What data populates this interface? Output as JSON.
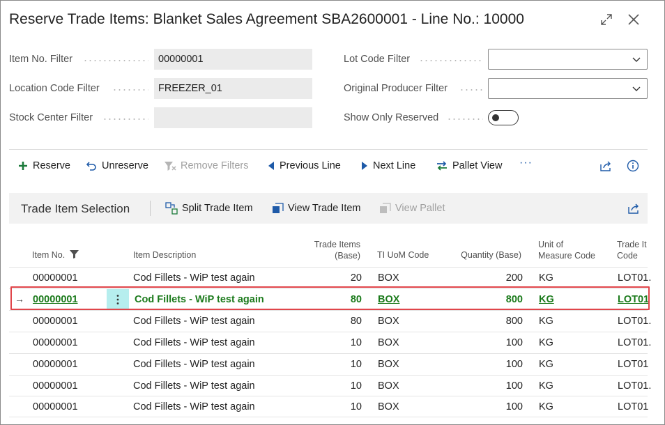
{
  "window": {
    "title": "Reserve Trade Items: Blanket Sales Agreement SBA2600001 - Line No.: 10000"
  },
  "filters": {
    "item_no": {
      "label": "Item No. Filter",
      "value": "00000001"
    },
    "location_code": {
      "label": "Location Code Filter",
      "value": "FREEZER_01"
    },
    "stock_center": {
      "label": "Stock Center Filter",
      "value": ""
    },
    "lot_code": {
      "label": "Lot Code Filter",
      "value": ""
    },
    "original_producer": {
      "label": "Original Producer Filter",
      "value": ""
    },
    "show_only_reserved": {
      "label": "Show Only Reserved",
      "on": false
    }
  },
  "actions": {
    "reserve": "Reserve",
    "unreserve": "Unreserve",
    "remove_filters": "Remove Filters",
    "previous_line": "Previous Line",
    "next_line": "Next Line",
    "pallet_view": "Pallet View",
    "more": "···"
  },
  "subpage": {
    "title": "Trade Item Selection",
    "actions": {
      "split": "Split Trade Item",
      "view": "View Trade Item",
      "view_pallet": "View Pallet"
    },
    "columns": {
      "item_no": "Item No.",
      "item_description": "Item Description",
      "trade_items_base_1": "Trade Items",
      "trade_items_base_2": "(Base)",
      "ti_uom_code": "TI UoM Code",
      "quantity_base": "Quantity (Base)",
      "uom_code_1": "Unit of",
      "uom_code_2": "Measure Code",
      "trade_item_code_1": "Trade It",
      "trade_item_code_2": "Code"
    },
    "rows": [
      {
        "item_no": "00000001",
        "description": "Cod Fillets - WiP test again",
        "trade_items": "20",
        "ti_uom": "BOX",
        "quantity": "200",
        "uom": "KG",
        "code": "LOT01.",
        "selected": false
      },
      {
        "item_no": "00000001",
        "description": "Cod Fillets - WiP test again",
        "trade_items": "80",
        "ti_uom": "BOX",
        "quantity": "800",
        "uom": "KG",
        "code": "LOT01",
        "selected": true
      },
      {
        "item_no": "00000001",
        "description": "Cod Fillets - WiP test again",
        "trade_items": "80",
        "ti_uom": "BOX",
        "quantity": "800",
        "uom": "KG",
        "code": "LOT01.",
        "selected": false
      },
      {
        "item_no": "00000001",
        "description": "Cod Fillets - WiP test again",
        "trade_items": "10",
        "ti_uom": "BOX",
        "quantity": "100",
        "uom": "KG",
        "code": "LOT01.",
        "selected": false
      },
      {
        "item_no": "00000001",
        "description": "Cod Fillets - WiP test again",
        "trade_items": "10",
        "ti_uom": "BOX",
        "quantity": "100",
        "uom": "KG",
        "code": "LOT01",
        "selected": false
      },
      {
        "item_no": "00000001",
        "description": "Cod Fillets - WiP test again",
        "trade_items": "10",
        "ti_uom": "BOX",
        "quantity": "100",
        "uom": "KG",
        "code": "LOT01.",
        "selected": false
      },
      {
        "item_no": "00000001",
        "description": "Cod Fillets - WiP test again",
        "trade_items": "10",
        "ti_uom": "BOX",
        "quantity": "100",
        "uom": "KG",
        "code": "LOT01",
        "selected": false
      }
    ]
  },
  "colors": {
    "accent_green": "#1b7a1b",
    "highlight_red": "#e0454a",
    "row_menu_bg": "#b6eeee"
  }
}
